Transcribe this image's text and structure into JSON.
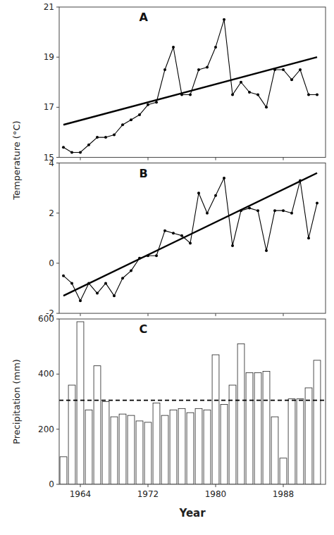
{
  "chart_data": [
    {
      "type": "line",
      "title": "A",
      "ylabel": "Temperature (°C)",
      "x": [
        1962,
        1963,
        1964,
        1965,
        1966,
        1967,
        1968,
        1969,
        1970,
        1971,
        1972,
        1973,
        1974,
        1975,
        1976,
        1977,
        1978,
        1979,
        1980,
        1981,
        1982,
        1983,
        1984,
        1985,
        1986,
        1987,
        1988,
        1989,
        1990,
        1991,
        1992
      ],
      "series": [
        {
          "values": [
            15.4,
            15.2,
            15.2,
            15.5,
            15.8,
            15.8,
            15.9,
            16.3,
            16.5,
            16.7,
            17.1,
            17.2,
            18.5,
            19.4,
            17.5,
            17.5,
            18.5,
            18.6,
            19.4,
            20.5,
            17.5,
            18.0,
            17.6,
            17.5,
            17.0,
            18.5,
            18.5,
            18.1,
            18.5,
            17.5,
            17.5
          ],
          "color": "black",
          "marker": "circle",
          "line_style": "solid"
        },
        {
          "x": [
            1962,
            1992
          ],
          "values": [
            16.3,
            19.0
          ],
          "color": "black",
          "line_style": "solid"
        }
      ],
      "xlim": [
        1961.5,
        1993.0
      ],
      "xticks": [
        1964,
        1972,
        1980,
        1988
      ],
      "ylim": [
        15,
        21
      ],
      "yticks": [
        15,
        17,
        19,
        21
      ],
      "grid": false,
      "tick_labels": "y"
    },
    {
      "type": "line",
      "title": "B",
      "x": [
        1962,
        1963,
        1964,
        1965,
        1966,
        1967,
        1968,
        1969,
        1970,
        1971,
        1972,
        1973,
        1974,
        1975,
        1976,
        1977,
        1978,
        1979,
        1980,
        1981,
        1982,
        1983,
        1984,
        1985,
        1986,
        1987,
        1988,
        1989,
        1990,
        1991,
        1992
      ],
      "series": [
        {
          "values": [
            -0.5,
            -0.8,
            -1.5,
            -0.8,
            -1.2,
            -0.8,
            -1.3,
            -0.6,
            -0.3,
            0.2,
            0.3,
            0.3,
            1.3,
            1.2,
            1.1,
            0.8,
            2.8,
            2.0,
            2.7,
            3.4,
            0.7,
            2.1,
            2.2,
            2.1,
            0.5,
            2.1,
            2.1,
            2.0,
            3.3,
            1.0,
            2.4
          ],
          "color": "black",
          "marker": "circle",
          "line_style": "solid"
        },
        {
          "x": [
            1962,
            1992
          ],
          "values": [
            -1.3,
            3.6
          ],
          "color": "black",
          "line_style": "solid"
        }
      ],
      "xlim": [
        1961.5,
        1993.0
      ],
      "xticks": [
        1964,
        1972,
        1980,
        1988
      ],
      "ylim": [
        -2,
        4
      ],
      "yticks": [
        -2,
        0,
        2,
        4
      ],
      "grid": false,
      "tick_labels": "y"
    },
    {
      "type": "bar",
      "title": "C",
      "xlabel": "Year",
      "ylabel": "Precipitation (mm)",
      "x": [
        1962,
        1963,
        1964,
        1965,
        1966,
        1967,
        1968,
        1969,
        1970,
        1971,
        1972,
        1973,
        1974,
        1975,
        1976,
        1977,
        1978,
        1979,
        1980,
        1981,
        1982,
        1983,
        1984,
        1985,
        1986,
        1987,
        1988,
        1989,
        1990,
        1991,
        1992
      ],
      "values": [
        100,
        360,
        590,
        270,
        430,
        300,
        245,
        255,
        250,
        230,
        225,
        295,
        250,
        270,
        275,
        260,
        275,
        270,
        470,
        290,
        360,
        510,
        405,
        405,
        410,
        245,
        95,
        310,
        310,
        350,
        450
      ],
      "color": "white",
      "hline": {
        "value": 305,
        "line_style": "dashed",
        "color": "black"
      },
      "xlim": [
        1961.5,
        1993.0
      ],
      "xticks": [
        1964,
        1972,
        1980,
        1988
      ],
      "ylim": [
        0,
        600
      ],
      "yticks": [
        0,
        200,
        400,
        600
      ],
      "grid": false
    }
  ]
}
